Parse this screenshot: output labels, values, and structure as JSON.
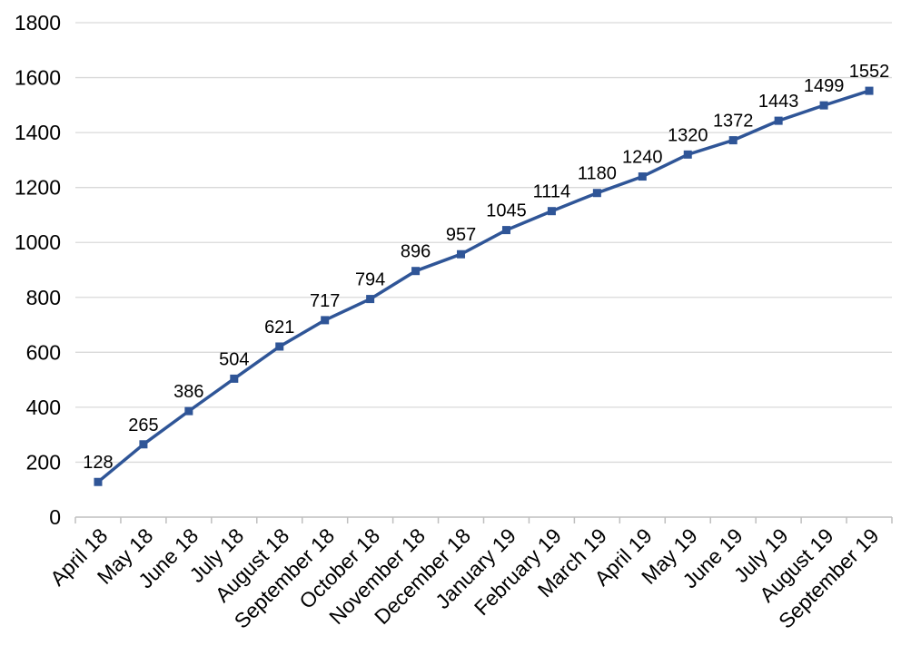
{
  "chart_data": {
    "type": "line",
    "title": "",
    "xlabel": "",
    "ylabel": "",
    "ylim": [
      0,
      1800
    ],
    "yticks": [
      0,
      200,
      400,
      600,
      800,
      1000,
      1200,
      1400,
      1600,
      1800
    ],
    "grid": "horizontal",
    "legend": "none",
    "categories": [
      "April 18",
      "May 18",
      "June 18",
      "July 18",
      "August 18",
      "September 18",
      "October 18",
      "November 18",
      "December 18",
      "January 19",
      "February 19",
      "March 19",
      "April 19",
      "May 19",
      "June 19",
      "July 19",
      "August 19",
      "September 19"
    ],
    "series": [
      {
        "values": [
          128,
          265,
          386,
          504,
          621,
          717,
          794,
          896,
          957,
          1045,
          1114,
          1180,
          1240,
          1320,
          1372,
          1443,
          1499,
          1552
        ],
        "color": "#2f5597",
        "marker": "square",
        "data_labels": true
      }
    ],
    "colors": {
      "gridline": "#d9d9d9",
      "axis": "#bfbfbf"
    }
  }
}
